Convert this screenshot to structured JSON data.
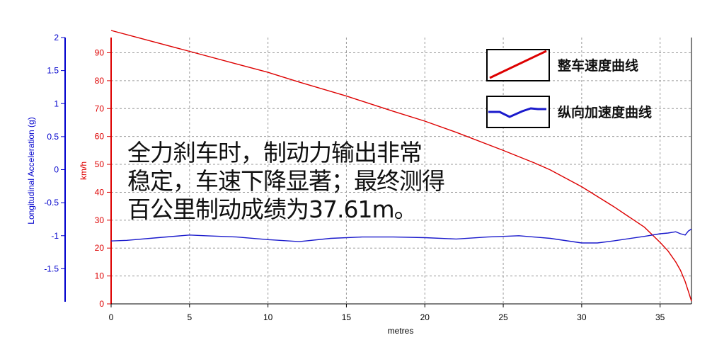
{
  "chart_data": {
    "type": "line",
    "xlabel": "metres",
    "x_ticks": [
      "0",
      "5",
      "10",
      "15",
      "20",
      "25",
      "30",
      "35"
    ],
    "xlim": [
      0,
      37
    ],
    "left_axis": {
      "label": "Longitudinal Acceleration (g)",
      "ticks": [
        "2",
        "1.5",
        "1",
        "0.5",
        "0",
        "-0.5",
        "-1",
        "-1.5"
      ],
      "ylim": [
        -2,
        2
      ],
      "color": "#0000cc"
    },
    "right_axis": {
      "label": "km/h",
      "ticks": [
        "90",
        "80",
        "70",
        "60",
        "50",
        "40",
        "30",
        "20",
        "10",
        "0"
      ],
      "ylim": [
        0,
        98
      ],
      "color": "#dd0000"
    },
    "grid": true,
    "legend_position": "top-right",
    "series": [
      {
        "name": "整车速度曲线",
        "axis": "right",
        "color": "#dd0000",
        "x": [
          0,
          2,
          5,
          8,
          10,
          12,
          15,
          18,
          20,
          22,
          25,
          27,
          28,
          30,
          32,
          34,
          35,
          35.5,
          36,
          36.3,
          36.6,
          36.8,
          37
        ],
        "y": [
          98,
          95,
          90.5,
          86,
          83,
          79.5,
          74.5,
          69,
          65.5,
          61.5,
          55,
          50.5,
          48,
          42,
          35,
          27.5,
          22,
          19,
          15,
          12,
          8,
          4.5,
          1
        ]
      },
      {
        "name": "纵向加速度曲线",
        "axis": "left",
        "color": "#1a1acc",
        "x": [
          0,
          1,
          3,
          5,
          6,
          8,
          10,
          12,
          14,
          16,
          18,
          20,
          22,
          24,
          26,
          28,
          30,
          31,
          32,
          34,
          35,
          35.5,
          36,
          36.3,
          36.6,
          36.8,
          37
        ],
        "y": [
          -1.08,
          -1.07,
          -1.03,
          -0.99,
          -1.0,
          -1.02,
          -1.06,
          -1.09,
          -1.04,
          -1.02,
          -1.02,
          -1.03,
          -1.05,
          -1.02,
          -1.0,
          -1.04,
          -1.11,
          -1.11,
          -1.08,
          -1.01,
          -0.97,
          -0.96,
          -0.94,
          -0.97,
          -0.99,
          -0.93,
          -0.9
        ]
      }
    ]
  },
  "caption": "全力刹车时，制动力输出非常\n稳定，车速下降显著；最终测得\n百公里制动成绩为37.61m。"
}
